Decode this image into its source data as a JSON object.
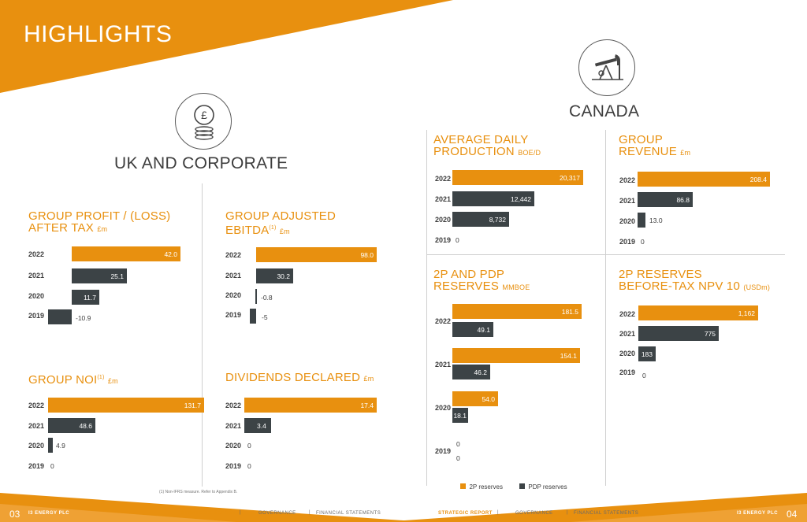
{
  "page_title": "HIGHLIGHTS",
  "uk": {
    "heading": "UK AND CORPORATE",
    "icon": "pound-coins-icon"
  },
  "canada": {
    "heading": "CANADA",
    "icon": "oil-pumpjack-icon"
  },
  "charts": {
    "profit": {
      "title_line1": "GROUP PROFIT / (LOSS)",
      "title_line2": "AFTER TAX",
      "unit": "£m",
      "rows": [
        {
          "year": "2022",
          "value": 42.0,
          "label": "42.0"
        },
        {
          "year": "2021",
          "value": 25.1,
          "label": "25.1"
        },
        {
          "year": "2020",
          "value": 11.7,
          "label": "11.7"
        },
        {
          "year": "2019",
          "value": -10.9,
          "label": "-10.9"
        }
      ]
    },
    "ebitda": {
      "title_line1": "GROUP ADJUSTED",
      "title_line2": "EBITDA",
      "sup": "(1)",
      "unit": "£m",
      "rows": [
        {
          "year": "2022",
          "value": 98.0,
          "label": "98.0"
        },
        {
          "year": "2021",
          "value": 30.2,
          "label": "30.2"
        },
        {
          "year": "2020",
          "value": -0.8,
          "label": "-0.8"
        },
        {
          "year": "2019",
          "value": -5,
          "label": "-5"
        }
      ]
    },
    "noi": {
      "title_line1": "GROUP NOI",
      "sup": "(1)",
      "unit": "£m",
      "rows": [
        {
          "year": "2022",
          "value": 131.7,
          "label": "131.7"
        },
        {
          "year": "2021",
          "value": 48.6,
          "label": "48.6"
        },
        {
          "year": "2020",
          "value": 4.9,
          "label": "4.9"
        },
        {
          "year": "2019",
          "value": 0,
          "label": "0"
        }
      ]
    },
    "dividends": {
      "title_line1": "DIVIDENDS DECLARED",
      "unit": "£m",
      "rows": [
        {
          "year": "2022",
          "value": 17.4,
          "label": "17.4"
        },
        {
          "year": "2021",
          "value": 3.4,
          "label": "3.4"
        },
        {
          "year": "2020",
          "value": 0,
          "label": "0"
        },
        {
          "year": "2019",
          "value": 0,
          "label": "0"
        }
      ]
    },
    "production": {
      "title_line1": "AVERAGE DAILY",
      "title_line2": "PRODUCTION",
      "unit": "BOE/D",
      "rows": [
        {
          "year": "2022",
          "value": 20317,
          "label": "20,317"
        },
        {
          "year": "2021",
          "value": 12442,
          "label": "12,442"
        },
        {
          "year": "2020",
          "value": 8732,
          "label": "8,732"
        },
        {
          "year": "2019",
          "value": 0,
          "label": "0"
        }
      ]
    },
    "revenue": {
      "title_line1": "GROUP",
      "title_line2": "REVENUE",
      "unit": "£m",
      "rows": [
        {
          "year": "2022",
          "value": 208.4,
          "label": "208.4"
        },
        {
          "year": "2021",
          "value": 86.8,
          "label": "86.8"
        },
        {
          "year": "2020",
          "value": 13.0,
          "label": "13.0"
        },
        {
          "year": "2019",
          "value": 0,
          "label": "0"
        }
      ]
    },
    "reserves": {
      "title_line1": "2P AND PDP",
      "title_line2": "RESERVES",
      "unit": "MMBOE",
      "legend_2p": "2P reserves",
      "legend_pdp": "PDP reserves",
      "rows": [
        {
          "year": "2022",
          "p2": 181.5,
          "p2_label": "181.5",
          "pdp": 49.1,
          "pdp_label": "49.1"
        },
        {
          "year": "2021",
          "p2": 154.1,
          "p2_label": "154.1",
          "pdp": 46.2,
          "pdp_label": "46.2"
        },
        {
          "year": "2020",
          "p2": 54.0,
          "p2_label": "54.0",
          "pdp": 18.1,
          "pdp_label": "18.1"
        },
        {
          "year": "2019",
          "p2": 0,
          "p2_label": "0",
          "pdp": 0,
          "pdp_label": "0"
        }
      ]
    },
    "npv": {
      "title_line1": "2P RESERVES",
      "title_line2": "BEFORE-TAX NPV 10",
      "unit": "(USDm)",
      "rows": [
        {
          "year": "2022",
          "value": 1162,
          "label": "1,162"
        },
        {
          "year": "2021",
          "value": 775,
          "label": "775"
        },
        {
          "year": "2020",
          "value": 183,
          "label": "183"
        },
        {
          "year": "2019",
          "value": 0,
          "label": "0"
        }
      ]
    }
  },
  "footnote": "(1) Non-IFRS measure. Refer to Appendix B.",
  "footer": {
    "left_page": "03",
    "left_company": "I3 ENERGY PLC",
    "nav1": "STRATEGIC REPORT",
    "nav2": "GOVERNANCE",
    "nav3": "FINANCIAL STATEMENTS",
    "right_company": "I3 ENERGY PLC",
    "right_page": "04",
    "sep": "|"
  },
  "colors": {
    "orange": "#e8900f",
    "dark": "#3c4346"
  }
}
